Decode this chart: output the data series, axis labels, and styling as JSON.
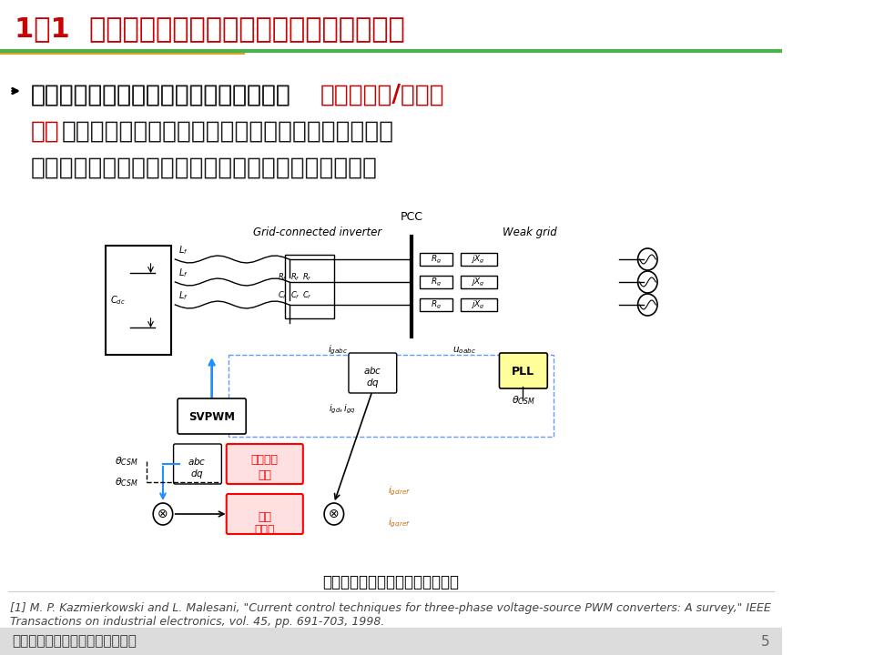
{
  "title": "1．1  电流源模式并网逆变器控制及其存在的问题",
  "title_color": "#CC0000",
  "title_bg_color": "#FFFFFF",
  "title_underline_color": "#4CAF50",
  "body_text_line1": "目前，并网逆变器主要采用电流源模式（",
  "body_text_red1": "电流控制型/电网跟",
  "body_text_line2_red": "随型",
  "body_text_line2": "）并网，强电网下不仅能实现新能源利用率的最大化",
  "body_text_line3": "（最大功率跟踪），还可以保证较高的并网电能质量。",
  "diagram_caption": "电流源模式并网逆变器控制原理图",
  "reference": "[1] M. P. Kazmierkowski and L. Malesani, \"Current control techniques for three-phase voltage-source PWM converters: A survey,\" IEEE\nTransactions on industrial electronics, vol. 45, pp. 691-703, 1998.",
  "footer_text": "中国电工技术学会新媒体平台发布",
  "page_number": "5",
  "bg_color": "#FFFFFF",
  "footer_bg_color": "#E8E8E8",
  "body_text_color": "#1a1a1a",
  "red_text_color": "#CC0000",
  "font_size_title": 22,
  "font_size_body": 19,
  "font_size_caption": 12,
  "font_size_ref": 9,
  "font_size_footer": 11
}
